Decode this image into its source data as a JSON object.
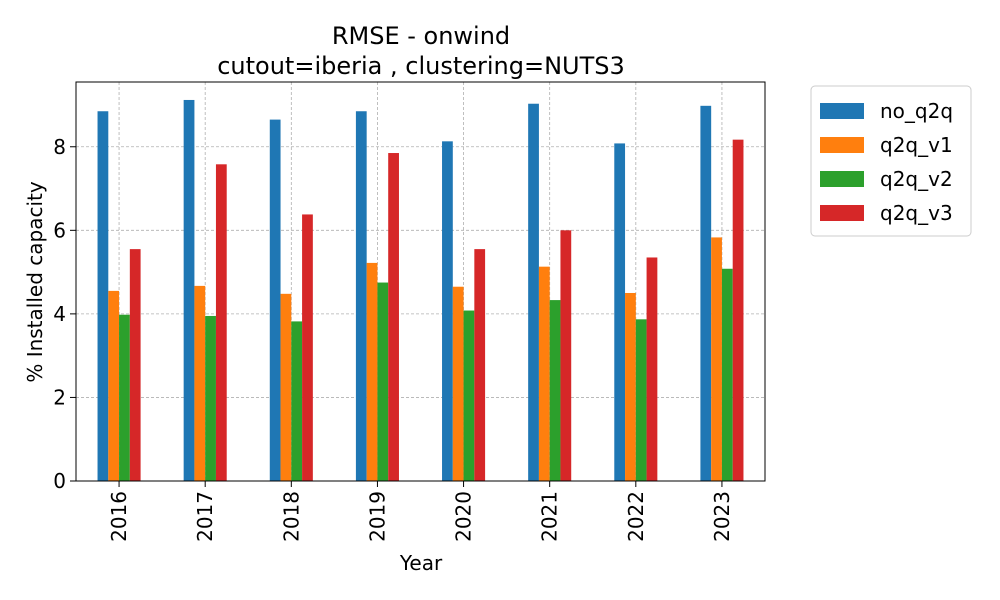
{
  "chart_data": {
    "type": "bar",
    "title": "RMSE - onwind",
    "subtitle": "cutout=iberia , clustering=NUTS3",
    "xlabel": "Year",
    "ylabel": "% Installed capacity",
    "categories": [
      "2016",
      "2017",
      "2018",
      "2019",
      "2020",
      "2021",
      "2022",
      "2023"
    ],
    "series": [
      {
        "name": "no_q2q",
        "color": "#1f77b4",
        "values": [
          8.85,
          9.12,
          8.65,
          8.85,
          8.13,
          9.03,
          8.08,
          8.98
        ]
      },
      {
        "name": "q2q_v1",
        "color": "#ff7f0e",
        "values": [
          4.55,
          4.67,
          4.48,
          5.22,
          4.65,
          5.13,
          4.5,
          5.83
        ]
      },
      {
        "name": "q2q_v2",
        "color": "#2ca02c",
        "values": [
          3.98,
          3.95,
          3.82,
          4.75,
          4.08,
          4.33,
          3.87,
          5.08
        ]
      },
      {
        "name": "q2q_v3",
        "color": "#d62728",
        "values": [
          5.55,
          7.58,
          6.38,
          7.85,
          5.55,
          6.0,
          5.35,
          8.17
        ]
      }
    ],
    "yticks": [
      0,
      2,
      4,
      6,
      8
    ],
    "ylim": [
      0,
      9.55
    ],
    "grid": true,
    "legend_position": "outside-right"
  }
}
